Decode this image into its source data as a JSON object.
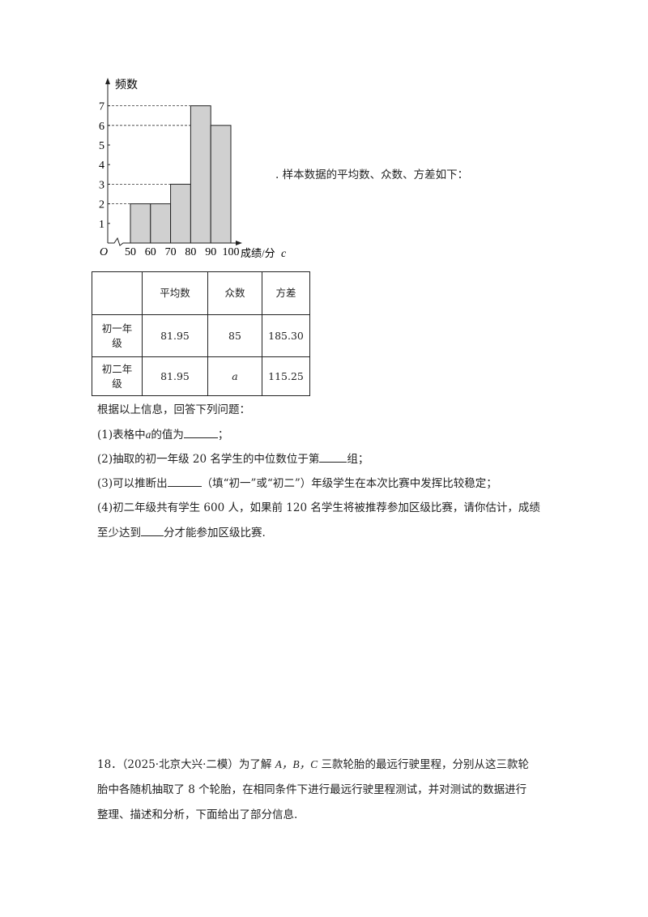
{
  "chart_data": {
    "type": "bar",
    "histogram": true,
    "categories": [
      "50-60",
      "60-70",
      "70-80",
      "80-90",
      "90-100"
    ],
    "bin_edges": [
      50,
      60,
      70,
      80,
      90,
      100
    ],
    "values": [
      2,
      2,
      3,
      7,
      6
    ],
    "xlabel": "成绩/分",
    "x_extra_label": "c",
    "ylabel": "频数",
    "origin_label": "O",
    "yticks": [
      1,
      2,
      3,
      4,
      5,
      6,
      7
    ],
    "xticks": [
      50,
      60,
      70,
      80,
      90,
      100
    ],
    "ylim": [
      0,
      7
    ],
    "axis_break": true,
    "dashed_guides": [
      2,
      3,
      6,
      7
    ],
    "bar_color": "#d0d0d0"
  },
  "intro_text": ".  样本数据的平均数、众数、方差如下：",
  "table": {
    "headers": [
      "",
      "平均数",
      "众数",
      "方差"
    ],
    "rows": [
      [
        "初一年级",
        "81.95",
        "85",
        "185.30"
      ],
      [
        "初二年级",
        "81.95",
        "a",
        "115.25"
      ]
    ]
  },
  "prompt": "根据以上信息，回答下列问题：",
  "questions": {
    "q1_a": "(1)表格中",
    "q1_var": "a",
    "q1_b": "的值为",
    "q1_c": "；",
    "q2_a": "(2)抽取的初一年级 20 名学生的中位数位于第",
    "q2_b": "组；",
    "q3_a": "(3)可以推断出",
    "q3_b": "（填“初一”或“初二”）年级学生在本次比赛中发挥比较稳定；",
    "q4_line1": "(4)初二年级共有学生 600 人，如果前 120 名学生将被推荐参加区级比赛，请你估计，成绩",
    "q4_a": "至少达到",
    "q4_b": "分才能参加区级比赛."
  },
  "problem18": {
    "line1_a": "18．（2025·北京大兴·二模）为了解 ",
    "line1_vars": "A，B，C",
    "line1_b": " 三款轮胎的最远行驶里程，分别从这三款轮",
    "line2": "胎中各随机抽取了 8 个轮胎，在相同条件下进行最远行驶里程测试，并对测试的数据进行",
    "line3": "整理、描述和分析，下面给出了部分信息."
  }
}
